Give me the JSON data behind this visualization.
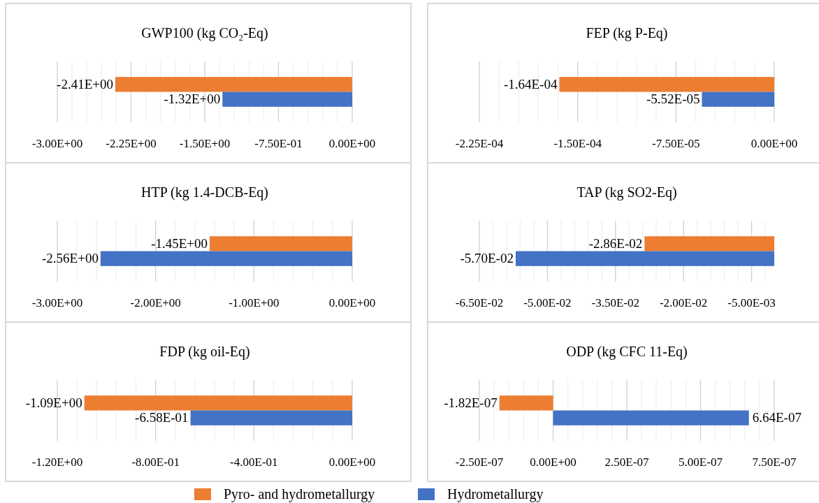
{
  "chart_data": [
    {
      "type": "bar",
      "orientation": "horizontal",
      "title": "GWP100 (kg CO₂-Eq)",
      "categories": [
        null
      ],
      "grid": "x",
      "xlim": [
        -3,
        0
      ],
      "xticks": [
        {
          "value": -3,
          "label": "-3.00E+00"
        },
        {
          "value": -2.85,
          "label": null
        },
        {
          "value": -2.7,
          "label": null
        },
        {
          "value": -2.55,
          "label": null
        },
        {
          "value": -2.4,
          "label": null
        },
        {
          "value": -2.25,
          "label": "-2.25E+00"
        },
        {
          "value": -2.1,
          "label": null
        },
        {
          "value": -1.95,
          "label": null
        },
        {
          "value": -1.8,
          "label": null
        },
        {
          "value": -1.65,
          "label": null
        },
        {
          "value": -1.5,
          "label": "-1.50E+00"
        },
        {
          "value": -1.35,
          "label": null
        },
        {
          "value": -1.2,
          "label": null
        },
        {
          "value": -1.05,
          "label": null
        },
        {
          "value": -0.9,
          "label": null
        },
        {
          "value": -0.75,
          "label": "-7.50E-01"
        },
        {
          "value": -0.6,
          "label": null
        },
        {
          "value": -0.45,
          "label": null
        },
        {
          "value": -0.3,
          "label": null
        },
        {
          "value": -0.15,
          "label": null
        },
        {
          "value": 0,
          "label": "0.00E+00"
        }
      ],
      "series": [
        {
          "color": "#ed7d31",
          "values": [
            -2.41
          ],
          "value_labels": [
            "-2.41E+00"
          ]
        },
        {
          "color": "#4472c4",
          "values": [
            -1.32
          ],
          "value_labels": [
            "-1.32E+00"
          ]
        }
      ]
    },
    {
      "type": "bar",
      "orientation": "horizontal",
      "title": "FEP (kg P-Eq)",
      "categories": [
        null
      ],
      "grid": "x",
      "xlim": [
        -0.000225,
        0
      ],
      "xticks": [
        {
          "value": -0.000225,
          "label": "-2.25E-04"
        },
        {
          "value": -0.00021,
          "label": null
        },
        {
          "value": -0.000195,
          "label": null
        },
        {
          "value": -0.00018,
          "label": null
        },
        {
          "value": -0.000165,
          "label": null
        },
        {
          "value": -0.00015,
          "label": "-1.50E-04"
        },
        {
          "value": -0.000135,
          "label": null
        },
        {
          "value": -0.00012,
          "label": null
        },
        {
          "value": -0.000105,
          "label": null
        },
        {
          "value": -9e-05,
          "label": null
        },
        {
          "value": -7.5e-05,
          "label": "-7.50E-05"
        },
        {
          "value": -6e-05,
          "label": null
        },
        {
          "value": -4.5e-05,
          "label": null
        },
        {
          "value": -3e-05,
          "label": null
        },
        {
          "value": -1.5e-05,
          "label": null
        },
        {
          "value": 0,
          "label": "0.00E+00"
        }
      ],
      "series": [
        {
          "color": "#ed7d31",
          "values": [
            -0.000164
          ],
          "value_labels": [
            "-1.64E-04"
          ]
        },
        {
          "color": "#4472c4",
          "values": [
            -5.52e-05
          ],
          "value_labels": [
            "-5.52E-05"
          ]
        }
      ]
    },
    {
      "type": "bar",
      "orientation": "horizontal",
      "title": "HTP (kg 1.4-DCB-Eq)",
      "categories": [
        null
      ],
      "grid": "x",
      "xlim": [
        -3,
        0
      ],
      "xticks": [
        {
          "value": -3,
          "label": "-3.00E+00"
        },
        {
          "value": -2.8,
          "label": null
        },
        {
          "value": -2.6,
          "label": null
        },
        {
          "value": -2.4,
          "label": null
        },
        {
          "value": -2.2,
          "label": null
        },
        {
          "value": -2,
          "label": "-2.00E+00"
        },
        {
          "value": -1.8,
          "label": null
        },
        {
          "value": -1.6,
          "label": null
        },
        {
          "value": -1.4,
          "label": null
        },
        {
          "value": -1.2,
          "label": null
        },
        {
          "value": -1,
          "label": "-1.00E+00"
        },
        {
          "value": -0.8,
          "label": null
        },
        {
          "value": -0.6,
          "label": null
        },
        {
          "value": -0.4,
          "label": null
        },
        {
          "value": -0.2,
          "label": null
        },
        {
          "value": 0,
          "label": "0.00E+00"
        }
      ],
      "series": [
        {
          "color": "#ed7d31",
          "values": [
            -1.45
          ],
          "value_labels": [
            "-1.45E+00"
          ]
        },
        {
          "color": "#4472c4",
          "values": [
            -2.56
          ],
          "value_labels": [
            "-2.56E+00"
          ]
        }
      ]
    },
    {
      "type": "bar",
      "orientation": "horizontal",
      "title": "TAP (kg SO2-Eq)",
      "categories": [
        null
      ],
      "grid": "x",
      "xlim": [
        -0.065,
        0
      ],
      "xticks": [
        {
          "value": -0.065,
          "label": "-6.50E-02"
        },
        {
          "value": -0.062,
          "label": null
        },
        {
          "value": -0.059,
          "label": null
        },
        {
          "value": -0.056,
          "label": null
        },
        {
          "value": -0.053,
          "label": null
        },
        {
          "value": -0.05,
          "label": "-5.00E-02"
        },
        {
          "value": -0.047,
          "label": null
        },
        {
          "value": -0.044,
          "label": null
        },
        {
          "value": -0.041,
          "label": null
        },
        {
          "value": -0.038,
          "label": null
        },
        {
          "value": -0.035,
          "label": "-3.50E-02"
        },
        {
          "value": -0.032,
          "label": null
        },
        {
          "value": -0.029,
          "label": null
        },
        {
          "value": -0.026,
          "label": null
        },
        {
          "value": -0.023,
          "label": null
        },
        {
          "value": -0.02,
          "label": "-2.00E-02"
        },
        {
          "value": -0.017,
          "label": null
        },
        {
          "value": -0.014,
          "label": null
        },
        {
          "value": -0.011,
          "label": null
        },
        {
          "value": -0.008,
          "label": null
        },
        {
          "value": -0.005,
          "label": "-5.00E-03"
        },
        {
          "value": -0.002,
          "label": null
        }
      ],
      "series": [
        {
          "color": "#ed7d31",
          "values": [
            -0.0286
          ],
          "value_labels": [
            "-2.86E-02"
          ]
        },
        {
          "color": "#4472c4",
          "values": [
            -0.057
          ],
          "value_labels": [
            "-5.70E-02"
          ]
        }
      ]
    },
    {
      "type": "bar",
      "orientation": "horizontal",
      "title": "FDP (kg oil-Eq)",
      "categories": [
        null
      ],
      "grid": "x",
      "xlim": [
        -1.2,
        0
      ],
      "xticks": [
        {
          "value": -1.2,
          "label": "-1.20E+00"
        },
        {
          "value": -1.12,
          "label": null
        },
        {
          "value": -1.04,
          "label": null
        },
        {
          "value": -0.96,
          "label": null
        },
        {
          "value": -0.88,
          "label": null
        },
        {
          "value": -0.8,
          "label": "-8.00E-01"
        },
        {
          "value": -0.72,
          "label": null
        },
        {
          "value": -0.64,
          "label": null
        },
        {
          "value": -0.56,
          "label": null
        },
        {
          "value": -0.48,
          "label": null
        },
        {
          "value": -0.4,
          "label": "-4.00E-01"
        },
        {
          "value": -0.32,
          "label": null
        },
        {
          "value": -0.24,
          "label": null
        },
        {
          "value": -0.16,
          "label": null
        },
        {
          "value": -0.08,
          "label": null
        },
        {
          "value": 0,
          "label": "0.00E+00"
        }
      ],
      "series": [
        {
          "color": "#ed7d31",
          "values": [
            -1.09
          ],
          "value_labels": [
            "-1.09E+00"
          ]
        },
        {
          "color": "#4472c4",
          "values": [
            -0.658
          ],
          "value_labels": [
            "-6.58E-01"
          ]
        }
      ]
    },
    {
      "type": "bar",
      "orientation": "horizontal",
      "title": "ODP (kg CFC 11-Eq)",
      "categories": [
        null
      ],
      "grid": "x",
      "xlim": [
        -2.5e-07,
        7.5e-07
      ],
      "legend": "bottom",
      "xticks": [
        {
          "value": -2.5e-07,
          "label": "-2.50E-07"
        },
        {
          "value": -2e-07,
          "label": null
        },
        {
          "value": -1.5e-07,
          "label": null
        },
        {
          "value": -1e-07,
          "label": null
        },
        {
          "value": -5e-08,
          "label": null
        },
        {
          "value": 0,
          "label": "0.00E+00"
        },
        {
          "value": 5e-08,
          "label": null
        },
        {
          "value": 1e-07,
          "label": null
        },
        {
          "value": 1.5e-07,
          "label": null
        },
        {
          "value": 2e-07,
          "label": null
        },
        {
          "value": 2.5e-07,
          "label": "2.50E-07"
        },
        {
          "value": 3e-07,
          "label": null
        },
        {
          "value": 3.5e-07,
          "label": null
        },
        {
          "value": 4e-07,
          "label": null
        },
        {
          "value": 4.5e-07,
          "label": null
        },
        {
          "value": 5e-07,
          "label": "5.00E-07"
        },
        {
          "value": 5.5e-07,
          "label": null
        },
        {
          "value": 6e-07,
          "label": null
        },
        {
          "value": 6.5e-07,
          "label": null
        },
        {
          "value": 7e-07,
          "label": null
        },
        {
          "value": 7.5e-07,
          "label": "7.50E-07"
        }
      ],
      "series": [
        {
          "name": "Pyro- and hydrometallurgy",
          "color": "#ed7d31",
          "values": [
            -1.82e-07
          ],
          "value_labels": [
            "-1.82E-07"
          ]
        },
        {
          "name": "Hydrometallurgy",
          "color": "#4472c4",
          "values": [
            6.64e-07
          ],
          "value_labels": [
            "6.64E-07"
          ]
        }
      ]
    }
  ]
}
